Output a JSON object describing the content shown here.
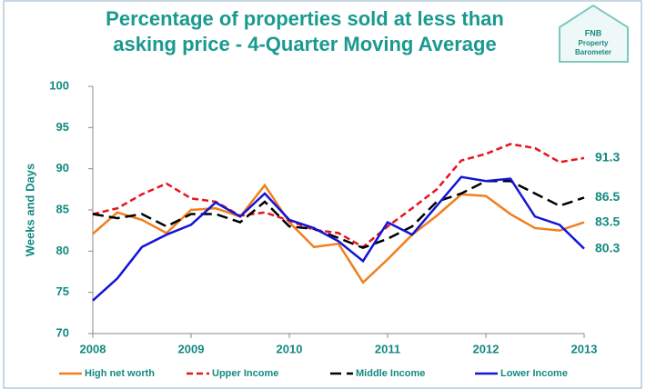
{
  "chart_data": {
    "type": "line",
    "title_lines": [
      "Percentage of properties sold at less than",
      "asking price - 4-Quarter Moving Average"
    ],
    "logo": [
      "FNB",
      "Property",
      "Barometer"
    ],
    "ylabel": "Weeks and Days",
    "x": [
      2008,
      2008.25,
      2008.5,
      2008.75,
      2009,
      2009.25,
      2009.5,
      2009.75,
      2010,
      2010.25,
      2010.5,
      2010.75,
      2011,
      2011.25,
      2011.5,
      2011.75,
      2012,
      2012.25,
      2012.5,
      2012.75,
      2013
    ],
    "xlim": [
      2008,
      2013
    ],
    "xticks": [
      2008,
      2009,
      2010,
      2011,
      2012,
      2013
    ],
    "ylim": [
      70,
      100
    ],
    "yticks": [
      70,
      75,
      80,
      85,
      90,
      95,
      100
    ],
    "series": [
      {
        "name": "High net worth",
        "color": "#f07f1e",
        "dash": "none",
        "values": [
          82.1,
          84.7,
          83.8,
          82.2,
          85.0,
          85.2,
          84.2,
          88.0,
          83.5,
          80.5,
          80.9,
          76.2,
          79.0,
          82.0,
          84.3,
          86.9,
          86.7,
          84.5,
          82.8,
          82.5,
          83.5
        ]
      },
      {
        "name": "Upper Income",
        "color": "#e8141c",
        "dash": "7 4",
        "values": [
          84.5,
          85.2,
          86.9,
          88.2,
          86.4,
          86.0,
          84.3,
          84.7,
          83.7,
          82.6,
          82.2,
          80.5,
          83.0,
          85.2,
          87.5,
          91.0,
          91.8,
          93.0,
          92.5,
          90.8,
          91.3
        ]
      },
      {
        "name": "Middle Income",
        "color": "#000000",
        "dash": "12 6",
        "values": [
          84.5,
          84.0,
          84.5,
          83.0,
          84.5,
          84.5,
          83.5,
          86.0,
          83.0,
          82.7,
          81.6,
          80.4,
          81.5,
          83.0,
          86.0,
          87.0,
          88.5,
          88.5,
          87.0,
          85.5,
          86.5
        ]
      },
      {
        "name": "Lower Income",
        "color": "#1414d8",
        "dash": "none",
        "values": [
          74.0,
          76.7,
          80.5,
          82.0,
          83.2,
          85.9,
          84.2,
          87.0,
          83.8,
          82.8,
          81.2,
          78.8,
          83.5,
          82.0,
          85.5,
          89.0,
          88.5,
          88.8,
          84.2,
          83.2,
          80.3
        ]
      }
    ],
    "end_label_color": "#138a80",
    "grid": false
  }
}
